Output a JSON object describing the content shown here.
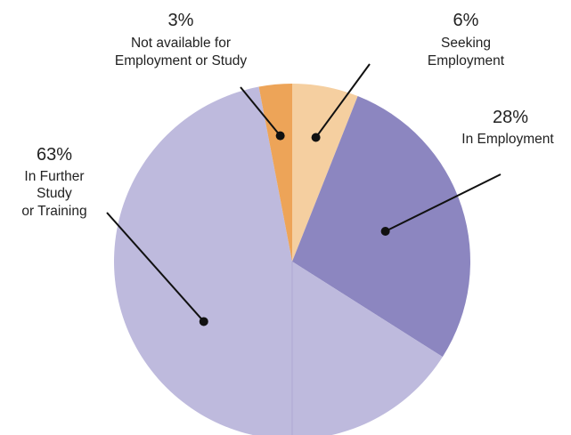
{
  "chart_data": {
    "type": "pie",
    "title": "",
    "slices": [
      {
        "label": "Seeking Employment",
        "label_lines": [
          "Seeking",
          "Employment"
        ],
        "value": 6,
        "value_text": "6%",
        "color": "#F5CFA0"
      },
      {
        "label": "In Employment",
        "label_lines": [
          "In Employment"
        ],
        "value": 28,
        "value_text": "28%",
        "color": "#8C86C0"
      },
      {
        "label": "In Further Study or Training",
        "label_lines": [
          "In Further",
          "Study",
          "or Training"
        ],
        "value": 63,
        "value_text": "63%",
        "color": "#BEBADD"
      },
      {
        "label": "Not available for Employment or Study",
        "label_lines": [
          "Not available for",
          "Employment or Study"
        ],
        "value": 3,
        "value_text": "3%",
        "color": "#EDA458"
      }
    ]
  }
}
